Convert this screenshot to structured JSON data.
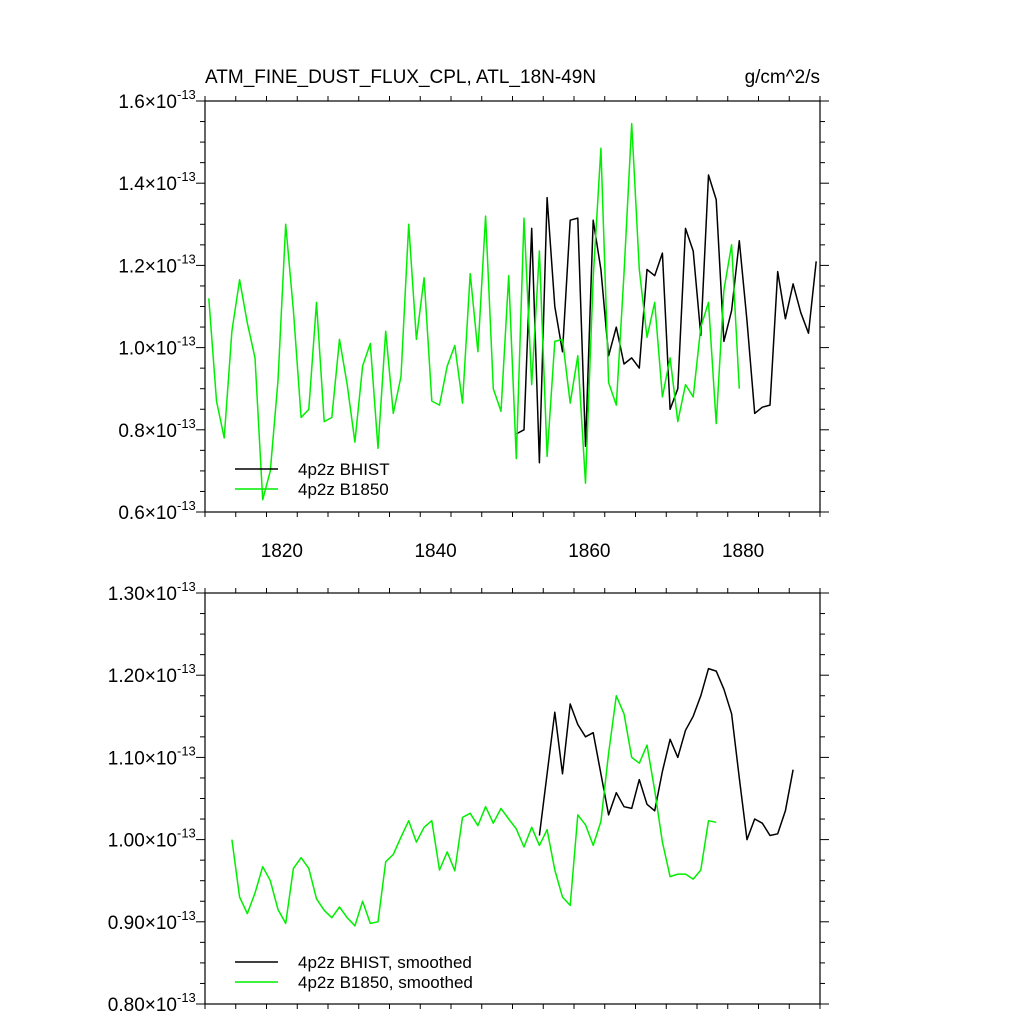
{
  "chart_data": [
    {
      "type": "line",
      "title": "ATM_FINE_DUST_FLUX_CPL, ATL_18N-49N",
      "units": "g/cm^2/s",
      "xlim": [
        1810,
        1890
      ],
      "ylim": [
        6e-14,
        1.6e-13
      ],
      "x_ticks": [
        {
          "value": 1820,
          "label": "1820"
        },
        {
          "value": 1840,
          "label": "1840"
        },
        {
          "value": 1860,
          "label": "1860"
        },
        {
          "value": 1880,
          "label": "1880"
        }
      ],
      "y_ticks": [
        {
          "value": 6e-14,
          "mantissa": "0.6",
          "exponent": "-13"
        },
        {
          "value": 8e-14,
          "mantissa": "0.8",
          "exponent": "-13"
        },
        {
          "value": 1e-13,
          "mantissa": "1.0",
          "exponent": "-13"
        },
        {
          "value": 1.2e-13,
          "mantissa": "1.2",
          "exponent": "-13"
        },
        {
          "value": 1.4e-13,
          "mantissa": "1.4",
          "exponent": "-13"
        },
        {
          "value": 1.6e-13,
          "mantissa": "1.6",
          "exponent": "-13"
        }
      ],
      "times_sign": "×10",
      "legend_position": "bottom-left",
      "series": [
        {
          "name": "4p2z BHIST",
          "color": "#000000",
          "x_start": 1850.5,
          "step": 1,
          "values": [
            7.9e-14,
            8e-14,
            1.29e-13,
            7.2e-14,
            1.365e-13,
            1.1e-13,
            9.9e-14,
            1.31e-13,
            1.315e-13,
            7.6e-14,
            1.31e-13,
            1.19e-13,
            9.8e-14,
            1.05e-13,
            9.6e-14,
            9.75e-14,
            9.5e-14,
            1.19e-13,
            1.175e-13,
            1.23e-13,
            8.5e-14,
            9e-14,
            1.29e-13,
            1.235e-13,
            1.03e-13,
            1.42e-13,
            1.36e-13,
            1.015e-13,
            1.09e-13,
            1.26e-13,
            1.065e-13,
            8.4e-14,
            8.55e-14,
            8.6e-14,
            1.185e-13,
            1.07e-13,
            1.155e-13,
            1.085e-13,
            1.035e-13,
            1.21e-13
          ]
        },
        {
          "name": "4p2z B1850",
          "color": "#00ee00",
          "x_start": 1810.5,
          "step": 1,
          "values": [
            1.12e-13,
            8.7e-14,
            7.8e-14,
            1.04e-13,
            1.165e-13,
            1.06e-13,
            9.75e-14,
            6.3e-14,
            7e-14,
            9.2e-14,
            1.3e-13,
            1.09e-13,
            8.3e-14,
            8.5e-14,
            1.11e-13,
            8.2e-14,
            8.3e-14,
            1.02e-13,
            9.1e-14,
            7.7e-14,
            9.55e-14,
            1.01e-13,
            7.55e-14,
            1.04e-13,
            8.4e-14,
            9.3e-14,
            1.3e-13,
            1.02e-13,
            1.17e-13,
            8.7e-14,
            8.6e-14,
            9.55e-14,
            1.005e-13,
            8.65e-14,
            1.18e-13,
            9.9e-14,
            1.32e-13,
            9e-14,
            8.45e-14,
            1.175e-13,
            7.3e-14,
            1.315e-13,
            9.1e-14,
            1.235e-13,
            7.35e-14,
            1.015e-13,
            1.02e-13,
            8.65e-14,
            9.8e-14,
            6.7e-14,
            1.17e-13,
            1.485e-13,
            9.15e-14,
            8.6e-14,
            1.18e-13,
            1.545e-13,
            1.19e-13,
            1.025e-13,
            1.11e-13,
            8.8e-14,
            9.75e-14,
            8.2e-14,
            9.1e-14,
            8.8e-14,
            1.05e-13,
            1.11e-13,
            8.15e-14,
            1.14e-13,
            1.25e-13,
            9e-14
          ]
        }
      ]
    },
    {
      "type": "line",
      "xlim": [
        1810,
        1890
      ],
      "ylim": [
        8e-14,
        1.3e-13
      ],
      "y_ticks": [
        {
          "value": 8e-14,
          "mantissa": "0.80",
          "exponent": "-13"
        },
        {
          "value": 9e-14,
          "mantissa": "0.90",
          "exponent": "-13"
        },
        {
          "value": 1e-13,
          "mantissa": "1.00",
          "exponent": "-13"
        },
        {
          "value": 1.1e-13,
          "mantissa": "1.10",
          "exponent": "-13"
        },
        {
          "value": 1.2e-13,
          "mantissa": "1.20",
          "exponent": "-13"
        },
        {
          "value": 1.3e-13,
          "mantissa": "1.30",
          "exponent": "-13"
        }
      ],
      "times_sign": "×10",
      "legend_position": "bottom-left",
      "series": [
        {
          "name": "4p2z BHIST, smoothed",
          "color": "#000000",
          "x_start": 1853.5,
          "step": 1,
          "values": [
            1.005e-13,
            1.08e-13,
            1.155e-13,
            1.08e-13,
            1.165e-13,
            1.14e-13,
            1.125e-13,
            1.13e-13,
            1.08e-13,
            1.03e-13,
            1.057e-13,
            1.04e-13,
            1.038e-13,
            1.073e-13,
            1.043e-13,
            1.035e-13,
            1.083e-13,
            1.122e-13,
            1.1e-13,
            1.133e-13,
            1.15e-13,
            1.175e-13,
            1.208e-13,
            1.205e-13,
            1.183e-13,
            1.153e-13,
            1.075e-13,
            1e-13,
            1.025e-13,
            1.02e-13,
            1.005e-13,
            1.007e-13,
            1.035e-13,
            1.085e-13
          ]
        },
        {
          "name": "4p2z B1850, smoothed",
          "color": "#00ee00",
          "x_start": 1813.5,
          "step": 1,
          "values": [
            1e-13,
            9.3e-14,
            9.1e-14,
            9.35e-14,
            9.67e-14,
            9.5e-14,
            9.15e-14,
            8.98e-14,
            9.65e-14,
            9.78e-14,
            9.65e-14,
            9.28e-14,
            9.14e-14,
            9.05e-14,
            9.18e-14,
            9.05e-14,
            8.95e-14,
            9.25e-14,
            8.98e-14,
            9e-14,
            9.73e-14,
            9.82e-14,
            1.003e-13,
            1.023e-13,
            9.97e-14,
            1.015e-13,
            1.023e-13,
            9.63e-14,
            9.85e-14,
            9.62e-14,
            1.027e-13,
            1.032e-13,
            1.017e-13,
            1.04e-13,
            1.02e-13,
            1.038e-13,
            1.025e-13,
            1.013e-13,
            9.91e-14,
            1.015e-13,
            9.93e-14,
            1.012e-13,
            9.63e-14,
            9.3e-14,
            9.2e-14,
            1.03e-13,
            1.018e-13,
            9.93e-14,
            1.022e-13,
            1.105e-13,
            1.175e-13,
            1.153e-13,
            1.1e-13,
            1.093e-13,
            1.115e-13,
            1.06e-13,
            9.97e-14,
            9.55e-14,
            9.58e-14,
            9.58e-14,
            9.52e-14,
            9.63e-14,
            1.023e-13,
            1.021e-13
          ]
        }
      ]
    }
  ]
}
